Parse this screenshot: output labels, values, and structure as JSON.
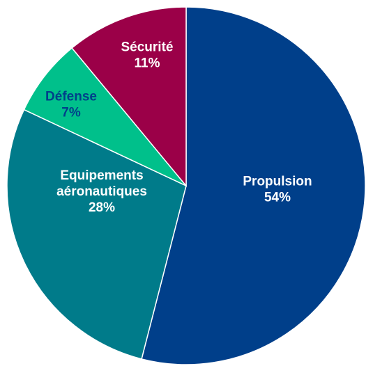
{
  "chart_data": {
    "type": "pie",
    "title": "",
    "start": "12 o'clock",
    "direction": "clockwise",
    "slices": [
      {
        "label_lines": [
          "Propulsion"
        ],
        "value": 54,
        "value_label": "54%",
        "color": "#003F8A",
        "text_color": "#FFFFFF"
      },
      {
        "label_lines": [
          "Equipements",
          "aéronautiques"
        ],
        "value": 28,
        "value_label": "28%",
        "color": "#007B8A",
        "text_color": "#FFFFFF"
      },
      {
        "label_lines": [
          "Défense"
        ],
        "value": 7,
        "value_label": "7%",
        "color": "#00C08B",
        "text_color": "#003F8A"
      },
      {
        "label_lines": [
          "Sécurité"
        ],
        "value": 11,
        "value_label": "11%",
        "color": "#9B0048",
        "text_color": "#FFFFFF"
      }
    ]
  }
}
